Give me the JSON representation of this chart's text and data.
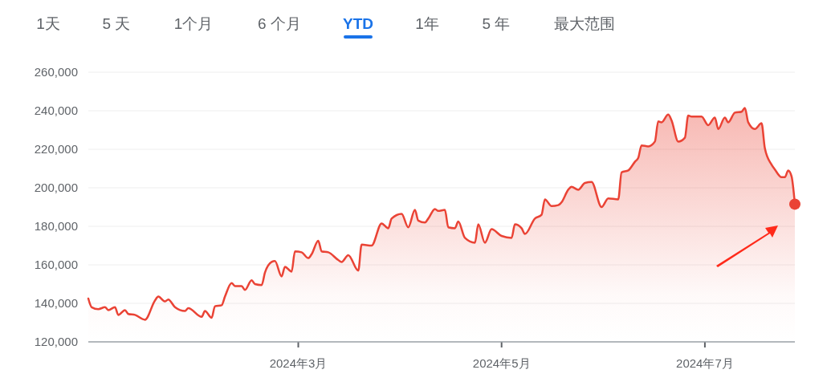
{
  "chart_data": {
    "type": "area",
    "annotations": [
      "1天",
      "5 天",
      "1个月",
      "6 个月",
      "YTD",
      "1年",
      "5 年",
      "最大范围"
    ],
    "x": [
      "2023-12-29",
      "2023-12-30",
      "2024-01-01",
      "2024-01-03",
      "2024-01-04",
      "2024-01-06",
      "2024-01-07",
      "2024-01-09",
      "2024-01-10",
      "2024-01-12",
      "2024-01-15",
      "2024-01-18",
      "2024-01-19",
      "2024-01-21",
      "2024-01-22",
      "2024-01-24",
      "2024-01-27",
      "2024-01-28",
      "2024-02-01",
      "2024-02-02",
      "2024-02-04",
      "2024-02-05",
      "2024-02-07",
      "2024-02-08",
      "2024-02-10",
      "2024-02-11",
      "2024-02-13",
      "2024-02-14",
      "2024-02-16",
      "2024-02-17",
      "2024-02-19",
      "2024-02-20",
      "2024-02-22",
      "2024-02-23",
      "2024-02-25",
      "2024-02-26",
      "2024-02-28",
      "2024-02-29",
      "2024-03-02",
      "2024-03-04",
      "2024-03-05",
      "2024-03-07",
      "2024-03-08",
      "2024-03-10",
      "2024-03-13",
      "2024-03-14",
      "2024-03-16",
      "2024-03-19",
      "2024-03-20",
      "2024-03-23",
      "2024-03-26",
      "2024-03-28",
      "2024-03-29",
      "2024-04-01",
      "2024-04-03",
      "2024-04-05",
      "2024-04-06",
      "2024-04-08",
      "2024-04-09",
      "2024-04-11",
      "2024-04-12",
      "2024-04-14",
      "2024-04-15",
      "2024-04-17",
      "2024-04-18",
      "2024-04-20",
      "2024-04-23",
      "2024-04-24",
      "2024-04-26",
      "2024-04-28",
      "2024-05-01",
      "2024-05-04",
      "2024-05-05",
      "2024-05-07",
      "2024-05-08",
      "2024-05-11",
      "2024-05-13",
      "2024-05-14",
      "2024-05-16",
      "2024-05-18",
      "2024-05-19",
      "2024-05-21",
      "2024-05-22",
      "2024-05-24",
      "2024-05-26",
      "2024-05-28",
      "2024-05-31",
      "2024-06-02",
      "2024-06-05",
      "2024-06-06",
      "2024-06-08",
      "2024-06-10",
      "2024-06-11",
      "2024-06-12",
      "2024-06-14",
      "2024-06-16",
      "2024-06-17",
      "2024-06-18",
      "2024-06-20",
      "2024-06-21",
      "2024-06-23",
      "2024-06-25",
      "2024-06-26",
      "2024-06-27",
      "2024-06-30",
      "2024-07-02",
      "2024-07-04",
      "2024-07-05",
      "2024-07-07",
      "2024-07-08",
      "2024-07-10",
      "2024-07-12",
      "2024-07-13",
      "2024-07-14",
      "2024-07-16",
      "2024-07-18",
      "2024-07-19",
      "2024-07-21",
      "2024-07-22",
      "2024-07-24",
      "2024-07-25",
      "2024-07-26",
      "2024-07-27",
      "2024-07-28"
    ],
    "series": [
      {
        "color": "#ea4335",
        "values": [
          142500,
          138000,
          137000,
          138000,
          136500,
          138000,
          134000,
          136500,
          134500,
          134000,
          131500,
          141500,
          143500,
          141000,
          142000,
          138000,
          136000,
          137500,
          133000,
          136000,
          132500,
          138500,
          139000,
          143500,
          150500,
          149000,
          149000,
          147000,
          152000,
          150000,
          149500,
          156000,
          161500,
          162000,
          154000,
          159000,
          156500,
          167000,
          166500,
          163500,
          165500,
          172500,
          167000,
          166500,
          162500,
          161500,
          165000,
          157000,
          170500,
          170000,
          181500,
          179000,
          184000,
          186500,
          179500,
          188500,
          183000,
          182000,
          184000,
          189000,
          188000,
          188500,
          179500,
          179000,
          182500,
          174000,
          171500,
          181000,
          171500,
          178500,
          175000,
          174000,
          181000,
          179000,
          176000,
          184000,
          186000,
          194000,
          190500,
          191000,
          192500,
          199000,
          200500,
          199000,
          202500,
          203000,
          190000,
          194500,
          194000,
          208000,
          209000,
          213500,
          215500,
          222000,
          221500,
          224000,
          234500,
          234000,
          238000,
          235000,
          224000,
          226000,
          237500,
          237000,
          237000,
          232500,
          236500,
          230500,
          236500,
          234000,
          239000,
          239500,
          241500,
          234000,
          230500,
          233500,
          220500,
          212000,
          209500,
          205500,
          205500,
          209000,
          206000,
          191500
        ]
      }
    ],
    "xlim": [
      "2023-12-29",
      "2024-07-28"
    ],
    "xticks": [
      {
        "value": "2024-03-01",
        "label": "2024年3月"
      },
      {
        "value": "2024-05-01",
        "label": "2024年5月"
      },
      {
        "value": "2024-07-01",
        "label": "2024年7月"
      }
    ],
    "ylim": [
      120000,
      260000
    ],
    "yticks": [
      {
        "value": 120000,
        "label": "120,000"
      },
      {
        "value": 140000,
        "label": "140,000"
      },
      {
        "value": 160000,
        "label": "160,000"
      },
      {
        "value": 180000,
        "label": "180,000"
      },
      {
        "value": 200000,
        "label": "200,000"
      },
      {
        "value": 220000,
        "label": "220,000"
      },
      {
        "value": 240000,
        "label": "240,000"
      },
      {
        "value": 260000,
        "label": "260,000"
      }
    ],
    "grid": "y"
  }
}
